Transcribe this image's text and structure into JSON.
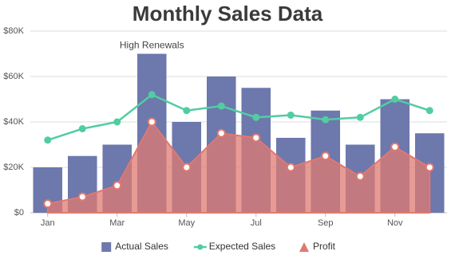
{
  "chart_data": {
    "type": "combo",
    "title": "Monthly Sales Data",
    "annotation": "High Renewals",
    "categories": [
      "Jan",
      null,
      "Mar",
      null,
      "May",
      null,
      "Jul",
      null,
      "Sep",
      null,
      "Nov",
      null
    ],
    "series": [
      {
        "name": "Actual Sales",
        "type": "bar",
        "color": "#6d78ad",
        "values": [
          20000,
          25000,
          30000,
          70000,
          40000,
          60000,
          55000,
          33000,
          45000,
          30000,
          50000,
          35000
        ]
      },
      {
        "name": "Expected Sales",
        "type": "line",
        "color": "#51cda0",
        "values": [
          32000,
          37000,
          40000,
          52000,
          45000,
          47000,
          42000,
          43000,
          41000,
          42000,
          50000,
          45000
        ]
      },
      {
        "name": "Profit",
        "type": "area",
        "color": "#df7970",
        "values": [
          4000,
          7000,
          12000,
          40000,
          20000,
          35000,
          33000,
          20000,
          25000,
          16000,
          29000,
          20000
        ]
      }
    ],
    "ylim": [
      0,
      80000
    ],
    "yticks": [
      {
        "value": 0,
        "label": "$0"
      },
      {
        "value": 20000,
        "label": "$20K"
      },
      {
        "value": 40000,
        "label": "$40K"
      },
      {
        "value": 60000,
        "label": "$60K"
      },
      {
        "value": 80000,
        "label": "$80K"
      }
    ],
    "grid": true,
    "legend": "bottom"
  }
}
